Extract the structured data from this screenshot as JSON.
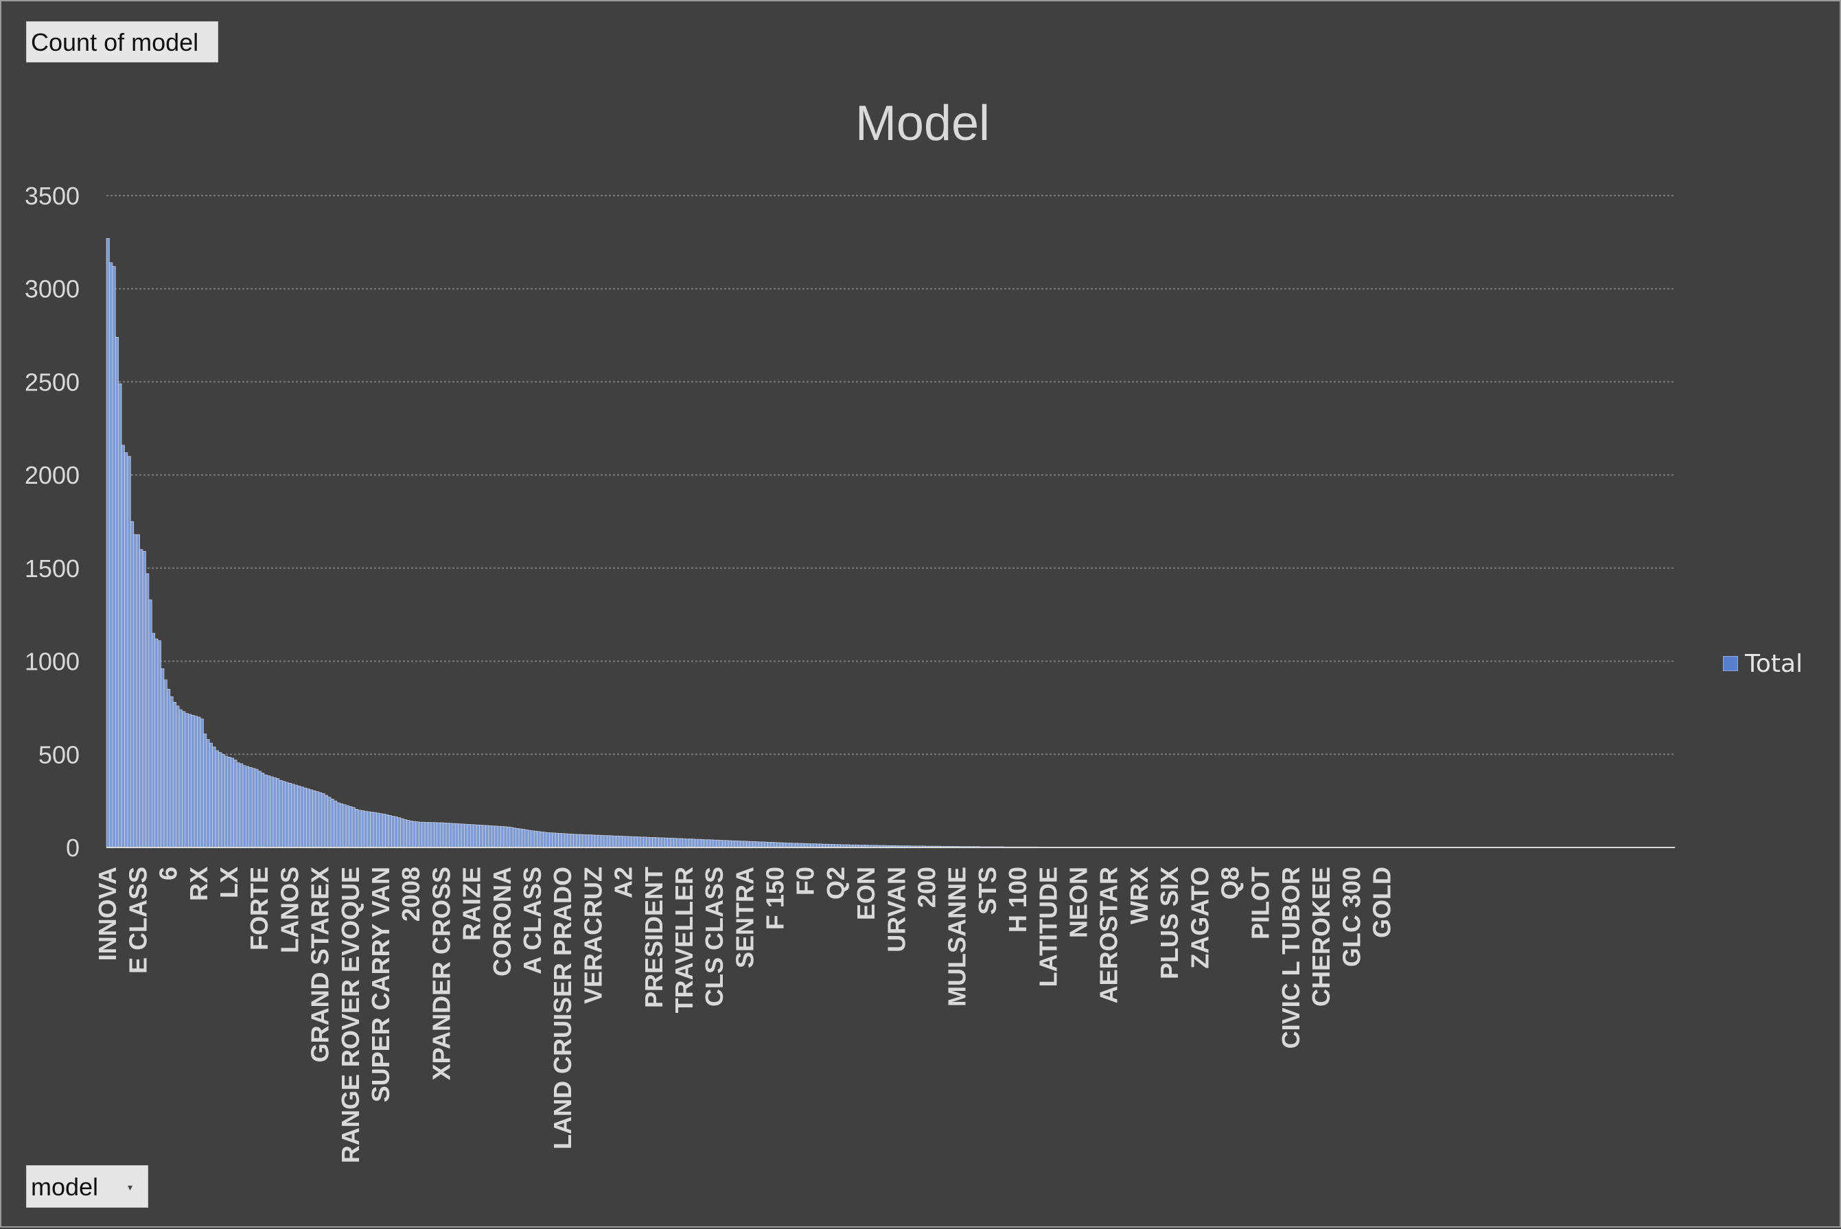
{
  "pivot_buttons": {
    "value_field": "Count of model",
    "axis_field": "model",
    "axis_arrow": "▾"
  },
  "colors": {
    "background": "#404040",
    "bar_fill": "#7f9ad0",
    "bar_stroke": "#d6def2",
    "gridline": "#7a7a7a",
    "text": "#d9d9d9",
    "legend_swatch": "#5b7fcf"
  },
  "chart_data": {
    "type": "bar",
    "title": "Model",
    "xlabel": "",
    "ylabel": "",
    "ylim": [
      0,
      3500
    ],
    "yticks": [
      0,
      500,
      1000,
      1500,
      2000,
      2500,
      3000,
      3500
    ],
    "grid": true,
    "legend_position": "right",
    "series": [
      {
        "name": "Total",
        "values": [
          3270,
          3140,
          3120,
          2740,
          2490,
          2160,
          2120,
          2100,
          1750,
          1680,
          1680,
          1600,
          1590,
          1470,
          1330,
          1150,
          1120,
          1110,
          960,
          900,
          850,
          810,
          780,
          760,
          740,
          730,
          720,
          715,
          710,
          705,
          700,
          690,
          610,
          580,
          560,
          540,
          520,
          510,
          500,
          490,
          485,
          480,
          470,
          455,
          450,
          440,
          435,
          430,
          425,
          420,
          410,
          400,
          390,
          385,
          380,
          375,
          370,
          360,
          355,
          350,
          345,
          340,
          335,
          330,
          325,
          320,
          315,
          310,
          305,
          300,
          295,
          290,
          280,
          270,
          260,
          250,
          240,
          235,
          230,
          225,
          220,
          215,
          205,
          200,
          198,
          195,
          192,
          190,
          188,
          185,
          182,
          180,
          176,
          172,
          168,
          165,
          160,
          155,
          150,
          146,
          142,
          140,
          138,
          136,
          136,
          135,
          135,
          134,
          134,
          133,
          133,
          132,
          131,
          130,
          129,
          128,
          127,
          126,
          125,
          124,
          123,
          122,
          121,
          120,
          119,
          118,
          117,
          116,
          115,
          114,
          113,
          112,
          110,
          108,
          105,
          102,
          100,
          98,
          95,
          92,
          90,
          88,
          86,
          84,
          82,
          80,
          79,
          78,
          77,
          76,
          75,
          74,
          73,
          72,
          71,
          70,
          70,
          69,
          68,
          68,
          67,
          66,
          66,
          65,
          64,
          64,
          63,
          62,
          62,
          61,
          60,
          60,
          59,
          58,
          58,
          57,
          56,
          56,
          55,
          54,
          54,
          53,
          52,
          52,
          51,
          50,
          50,
          49,
          48,
          48,
          47,
          46,
          46,
          45,
          44,
          44,
          43,
          42,
          42,
          41,
          40,
          40,
          39,
          38,
          38,
          37,
          36,
          36,
          35,
          34,
          34,
          33,
          32,
          32,
          31,
          30,
          30,
          29,
          28,
          28,
          27,
          26,
          26,
          25,
          24,
          24,
          23,
          23,
          22,
          22,
          21,
          21,
          20,
          20,
          19,
          19,
          18,
          18,
          17,
          17,
          16,
          16,
          15,
          15,
          15,
          14,
          14,
          14,
          13,
          13,
          13,
          12,
          12,
          12,
          11,
          11,
          11,
          10,
          10,
          10,
          10,
          9,
          9,
          9,
          9,
          8,
          8,
          8,
          8,
          8,
          7,
          7,
          7,
          7,
          7,
          6,
          6,
          6,
          6,
          6,
          6,
          5,
          5,
          5,
          5,
          5,
          5,
          5,
          4,
          4,
          4,
          4,
          4,
          4,
          4,
          4,
          3,
          3,
          3,
          3,
          3,
          3,
          3,
          3,
          3,
          3,
          3,
          2,
          2,
          2,
          2,
          2,
          2,
          2,
          2,
          2,
          2,
          2,
          2,
          2,
          2,
          2,
          2,
          2,
          2,
          2,
          2,
          2,
          2,
          2,
          2,
          2,
          2,
          2,
          2,
          2,
          1,
          1,
          1,
          1,
          1,
          1,
          1,
          1,
          1,
          1,
          1,
          1,
          1,
          1,
          1,
          1,
          1,
          1,
          1,
          1,
          1,
          1,
          1,
          1,
          1,
          1,
          1,
          1,
          1,
          1,
          1,
          1,
          1,
          1,
          1,
          1,
          1,
          1,
          1,
          1,
          1,
          1,
          1,
          1,
          1,
          1,
          1,
          1,
          1,
          1,
          1,
          1,
          1,
          1,
          1,
          1,
          1,
          1,
          1,
          1,
          1,
          1,
          1,
          1,
          1,
          1,
          1,
          1,
          1,
          1,
          1,
          1,
          1,
          1,
          1,
          1,
          1,
          1,
          1,
          1,
          1,
          1,
          1,
          1,
          1,
          1,
          1,
          1,
          1,
          1,
          1,
          1,
          1,
          1,
          1,
          1,
          1,
          1,
          1,
          1,
          1,
          1,
          1,
          1,
          1,
          1,
          1,
          1,
          1,
          1,
          1,
          1,
          1,
          1,
          1,
          1,
          1,
          1,
          1,
          1,
          1,
          1,
          1,
          1,
          1,
          1,
          1,
          1,
          1,
          1,
          1,
          1,
          1,
          1,
          1,
          1,
          1,
          1,
          1,
          1,
          1,
          1,
          1,
          1,
          1,
          1,
          1,
          1,
          1,
          1,
          1,
          1,
          1,
          1,
          1,
          1,
          1,
          1,
          1,
          1,
          1,
          1,
          1,
          1,
          1,
          1,
          1,
          1,
          1,
          1,
          1,
          1,
          1,
          1,
          1,
          1,
          1,
          1,
          1,
          1,
          1
        ]
      }
    ],
    "tick_labels": [
      {
        "label": "INNOVA",
        "index": 0
      },
      {
        "label": "E CLASS",
        "index": 10
      },
      {
        "label": "6",
        "index": 20
      },
      {
        "label": "RX",
        "index": 30
      },
      {
        "label": "LX",
        "index": 40
      },
      {
        "label": "FORTE",
        "index": 50
      },
      {
        "label": "LANOS",
        "index": 60
      },
      {
        "label": "GRAND STAREX",
        "index": 70
      },
      {
        "label": "RANGE ROVER EVOQUE",
        "index": 80
      },
      {
        "label": "SUPER CARRY VAN",
        "index": 90
      },
      {
        "label": "2008",
        "index": 100
      },
      {
        "label": "XPANDER CROSS",
        "index": 110
      },
      {
        "label": "RAIZE",
        "index": 120
      },
      {
        "label": "CORONA",
        "index": 130
      },
      {
        "label": "A CLASS",
        "index": 140
      },
      {
        "label": "LAND CRUISER PRADO",
        "index": 150
      },
      {
        "label": "VERACRUZ",
        "index": 160
      },
      {
        "label": "A2",
        "index": 170
      },
      {
        "label": "PRESIDENT",
        "index": 180
      },
      {
        "label": "TRAVELLER",
        "index": 190
      },
      {
        "label": "CLS CLASS",
        "index": 200
      },
      {
        "label": "SENTRA",
        "index": 210
      },
      {
        "label": "F 150",
        "index": 220
      },
      {
        "label": "F0",
        "index": 230
      },
      {
        "label": "Q2",
        "index": 240
      },
      {
        "label": "EON",
        "index": 250
      },
      {
        "label": "URVAN",
        "index": 260
      },
      {
        "label": "200",
        "index": 270
      },
      {
        "label": "MULSANNE",
        "index": 280
      },
      {
        "label": "STS",
        "index": 290
      },
      {
        "label": "H 100",
        "index": 300
      },
      {
        "label": "LATITUDE",
        "index": 310
      },
      {
        "label": "NEON",
        "index": 320
      },
      {
        "label": "AEROSTAR",
        "index": 330
      },
      {
        "label": "WRX",
        "index": 340
      },
      {
        "label": "PLUS SIX",
        "index": 350
      },
      {
        "label": "ZAGATO",
        "index": 360
      },
      {
        "label": "Q8",
        "index": 370
      },
      {
        "label": "PILOT",
        "index": 380
      },
      {
        "label": "CIVIC L TUBOR",
        "index": 390
      },
      {
        "label": "CHEROKEE",
        "index": 400
      },
      {
        "label": "GLC 300",
        "index": 410
      },
      {
        "label": "GOLD",
        "index": 420
      }
    ]
  }
}
